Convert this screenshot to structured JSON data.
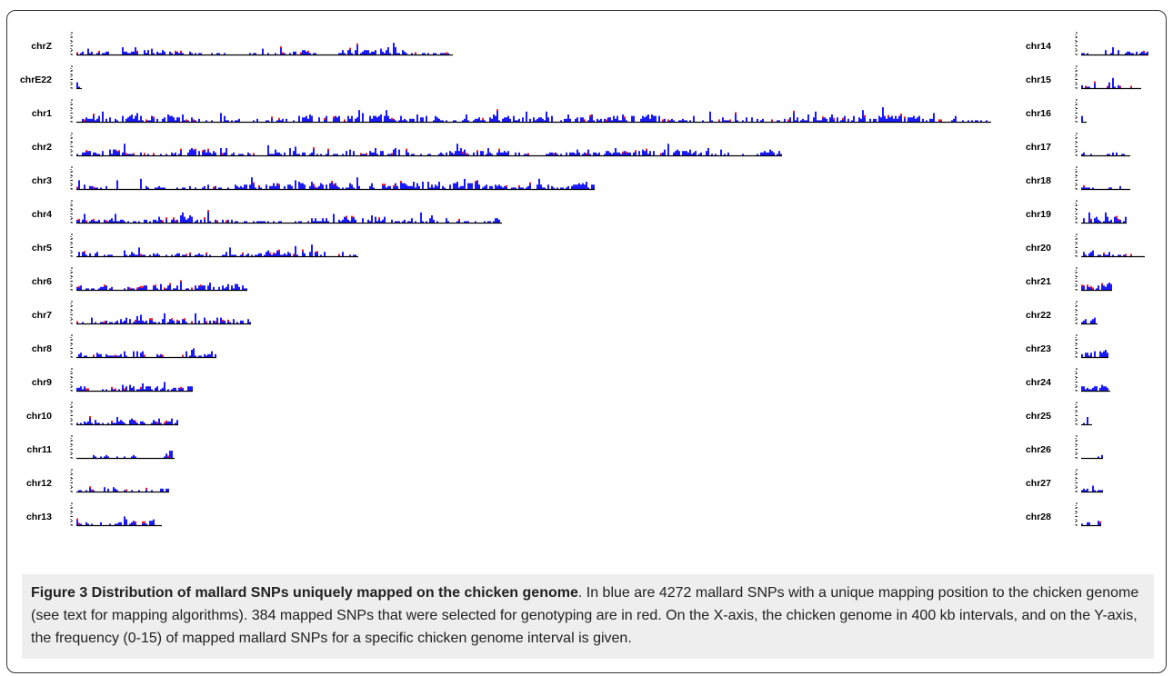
{
  "figure": {
    "caption_title": "Figure 3 Distribution of mallard SNPs uniquely mapped on the chicken genome",
    "caption_text": ". In blue are 4272 mallard SNPs with a unique mapping position to the chicken genome (see text for mapping algorithms). 384 mapped SNPs that were selected for genotyping are in red. On the X-axis, the chicken genome in 400 kb intervals, and on the Y-axis, the frequency (0-15) of mapped mallard SNPs for a specific chicken genome interval is given."
  },
  "chart_data": {
    "type": "bar",
    "x_unit": "400 kb interval",
    "y_range": [
      0,
      15
    ],
    "colors": {
      "mapped": "#1a1aff",
      "genotyped": "#ff1a1a",
      "axis": "#000000"
    },
    "series_legend": {
      "mapped": "4272 mallard SNPs with a unique mapping position (blue)",
      "genotyped": "384 mapped SNPs selected for genotyping (red)"
    },
    "panels": [
      {
        "chr": "chrZ",
        "intervals": 207,
        "column": "left"
      },
      {
        "chr": "chrE22",
        "intervals": 2,
        "column": "left"
      },
      {
        "chr": "chr1",
        "intervals": 503,
        "column": "left"
      },
      {
        "chr": "chr2",
        "intervals": 388,
        "column": "left"
      },
      {
        "chr": "chr3",
        "intervals": 285,
        "column": "left"
      },
      {
        "chr": "chr4",
        "intervals": 234,
        "column": "left"
      },
      {
        "chr": "chr5",
        "intervals": 155,
        "column": "left"
      },
      {
        "chr": "chr6",
        "intervals": 94,
        "column": "left"
      },
      {
        "chr": "chr7",
        "intervals": 96,
        "column": "left"
      },
      {
        "chr": "chr8",
        "intervals": 77,
        "column": "left"
      },
      {
        "chr": "chr9",
        "intervals": 64,
        "column": "left"
      },
      {
        "chr": "chr10",
        "intervals": 56,
        "column": "left"
      },
      {
        "chr": "chr11",
        "intervals": 54,
        "column": "left"
      },
      {
        "chr": "chr12",
        "intervals": 51,
        "column": "left"
      },
      {
        "chr": "chr13",
        "intervals": 47,
        "column": "left"
      },
      {
        "chr": "chr14",
        "intervals": 37,
        "column": "right"
      },
      {
        "chr": "chr15",
        "intervals": 33,
        "column": "right"
      },
      {
        "chr": "chr16",
        "intervals": 1,
        "column": "right"
      },
      {
        "chr": "chr17",
        "intervals": 27,
        "column": "right"
      },
      {
        "chr": "chr18",
        "intervals": 27,
        "column": "right"
      },
      {
        "chr": "chr19",
        "intervals": 25,
        "column": "right"
      },
      {
        "chr": "chr20",
        "intervals": 35,
        "column": "right"
      },
      {
        "chr": "chr21",
        "intervals": 17,
        "column": "right"
      },
      {
        "chr": "chr22",
        "intervals": 9,
        "column": "right"
      },
      {
        "chr": "chr23",
        "intervals": 15,
        "column": "right"
      },
      {
        "chr": "chr24",
        "intervals": 16,
        "column": "right"
      },
      {
        "chr": "chr25",
        "intervals": 6,
        "column": "right"
      },
      {
        "chr": "chr26",
        "intervals": 12,
        "column": "right"
      },
      {
        "chr": "chr27",
        "intervals": 12,
        "column": "right"
      },
      {
        "chr": "chr28",
        "intervals": 11,
        "column": "right"
      }
    ]
  }
}
